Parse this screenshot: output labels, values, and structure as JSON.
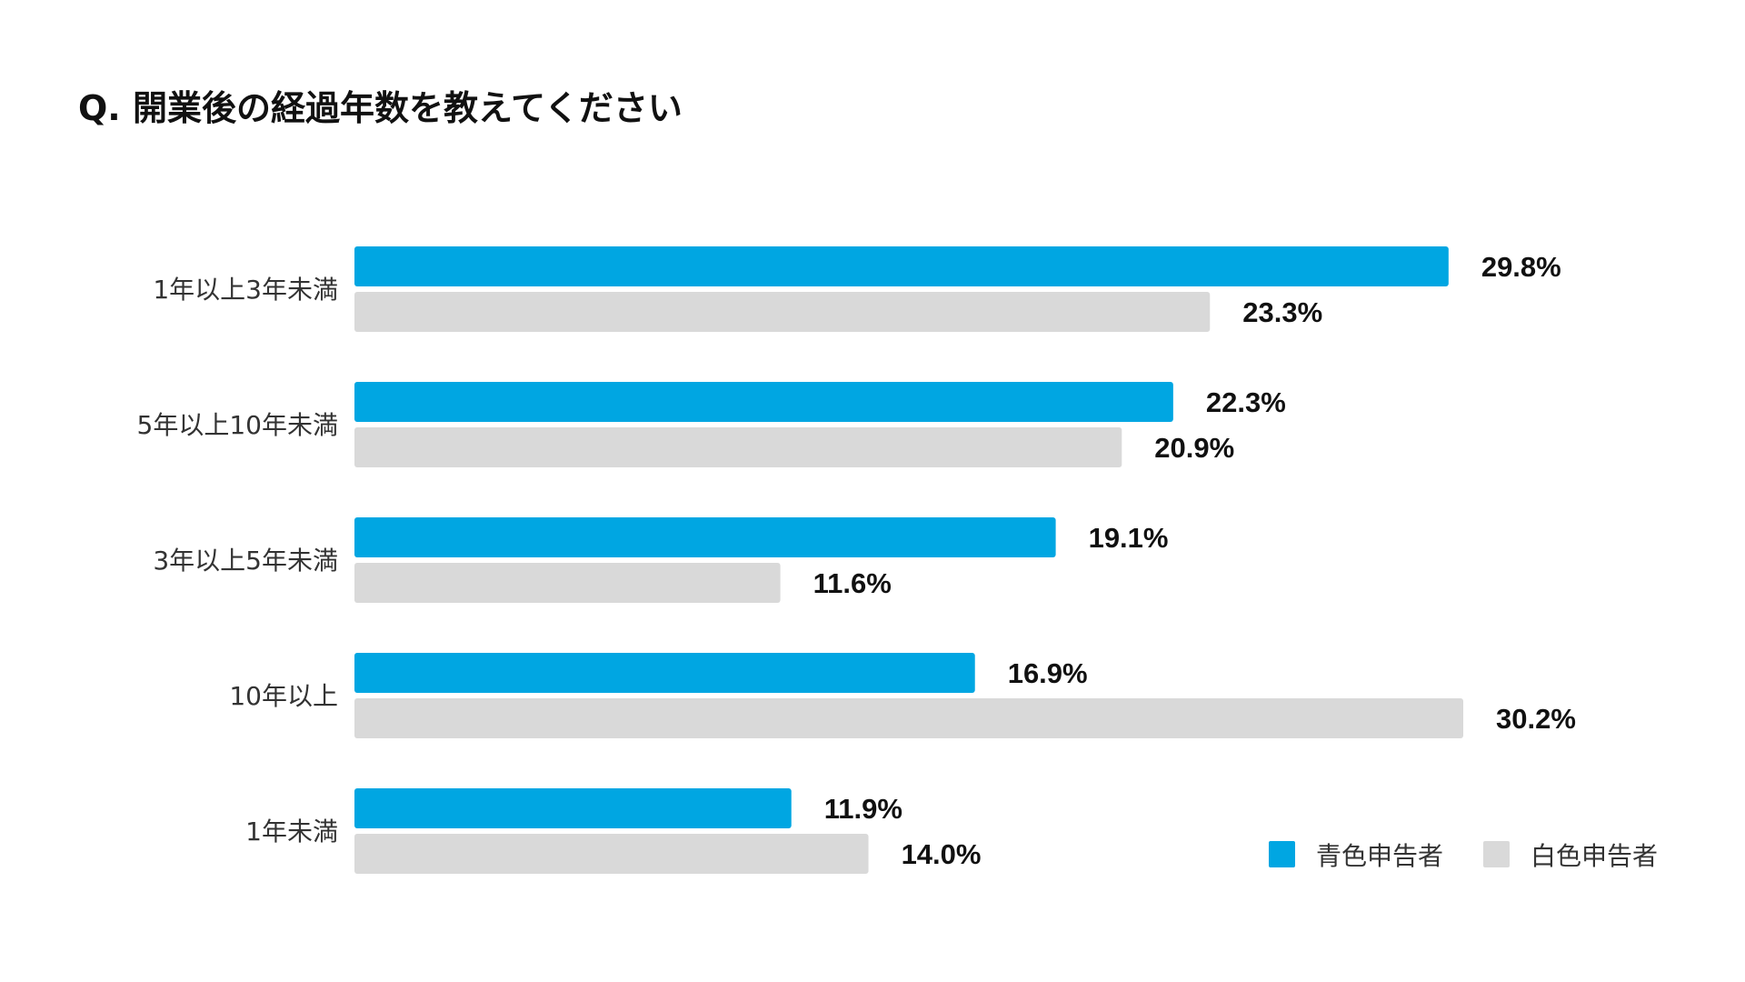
{
  "chart_data": {
    "type": "bar",
    "orientation": "horizontal",
    "title": "Q. 開業後の経過年数を教えてください",
    "xlabel": "",
    "ylabel": "",
    "xlim": [
      0,
      30.2
    ],
    "grid": false,
    "categories": [
      "1年以上3年未満",
      "5年以上10年未満",
      "3年以上5年未満",
      "10年以上",
      "1年未満"
    ],
    "series": [
      {
        "name": "青色申告者",
        "color": "#00A6E2",
        "values": [
          29.8,
          22.3,
          19.1,
          16.9,
          11.9
        ],
        "labels": [
          "29.8%",
          "22.3%",
          "19.1%",
          "16.9%",
          "11.9%"
        ]
      },
      {
        "name": "白色申告者",
        "color": "#D9D9D9",
        "values": [
          23.3,
          20.9,
          11.6,
          30.2,
          14.0
        ],
        "labels": [
          "23.3%",
          "20.9%",
          "11.6%",
          "30.2%",
          "14.0%"
        ]
      }
    ],
    "legend_position": "bottom-right"
  }
}
